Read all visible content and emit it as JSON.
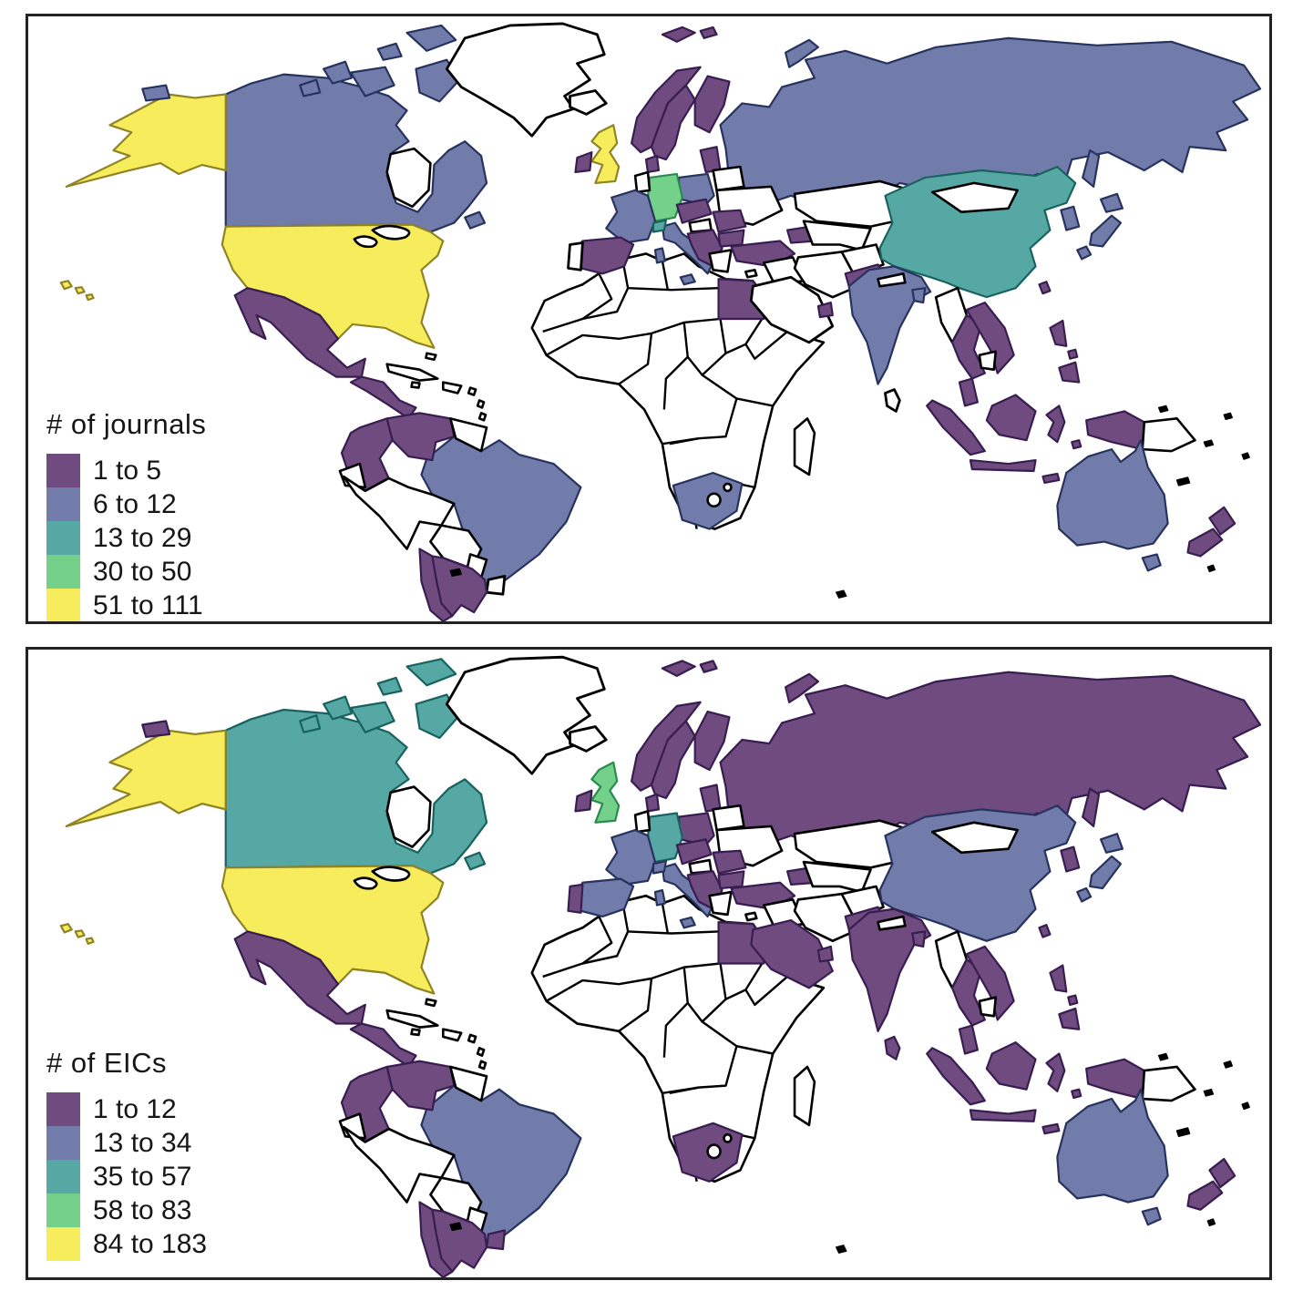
{
  "figure": {
    "description": "Two choropleth world maps",
    "background": "#ffffff"
  },
  "colors": {
    "purple": "#6f4b80",
    "blue": "#717cab",
    "teal": "#55a8a3",
    "green": "#74d189",
    "yellow": "#f7ec5b",
    "none": "#ffffff"
  },
  "stroke_colors": {
    "purple": "#381d50",
    "blue": "#27325e",
    "teal": "#1a625f",
    "green": "#2a8a50",
    "yellow": "#8f8326",
    "none": "#000000"
  },
  "panels": [
    {
      "id": "journals",
      "legend_title": "# of journals",
      "legend": [
        {
          "bin": "purple",
          "label": "1 to 5"
        },
        {
          "bin": "blue",
          "label": "6 to 12"
        },
        {
          "bin": "teal",
          "label": "13 to 29"
        },
        {
          "bin": "green",
          "label": "30 to 50"
        },
        {
          "bin": "yellow",
          "label": "51 to 111"
        }
      ],
      "countries": {
        "russia": "blue",
        "novaya_zemlya": "blue",
        "sakhalin": "blue",
        "svalbard": "purple",
        "canada": "blue",
        "arctic_islands": "blue",
        "newfoundland": "blue",
        "alaska": "yellow",
        "alaska_island": "blue",
        "usa": "yellow",
        "hawaii": "yellow",
        "greenland": "none",
        "iceland": "none",
        "mexico": "purple",
        "centram": "purple",
        "brazil": "blue",
        "colombia": "purple",
        "venezuela": "purple",
        "guyanas": "none",
        "ecuador": "none",
        "peru": "none",
        "bolivia": "none",
        "paraguay": "none",
        "uruguay": "none",
        "argentina": "purple",
        "chile": "purple",
        "africa": "none",
        "egypt": "purple",
        "south_africa": "blue",
        "madagascar": "none",
        "norway": "purple",
        "sweden": "purple",
        "finland": "purple",
        "denmark": "purple",
        "baltics": "purple",
        "belarus": "none",
        "ukraine": "none",
        "poland": "blue",
        "germany": "green",
        "benelux": "none",
        "france": "blue",
        "spain": "purple",
        "portugal": "none",
        "italy": "blue",
        "switzerland": "teal",
        "austria_czech": "purple",
        "hungary": "none",
        "romania": "purple",
        "balkans": "purple",
        "bulgaria": "purple",
        "greece": "none",
        "uk": "yellow",
        "ireland": "purple",
        "turkey": "purple",
        "caucasus": "purple",
        "cyprus": "none",
        "iraq": "none",
        "iran": "none",
        "saudi": "none",
        "uae": "purple",
        "kazakhstan": "none",
        "centralasia": "none",
        "afghanistan": "none",
        "china": "teal",
        "mongolia": "none",
        "taiwan": "purple",
        "korea": "blue",
        "japan": "blue",
        "pakistan": "purple",
        "india": "blue",
        "nepal": "none",
        "bangladesh": "blue",
        "srilanka": "none",
        "myanmar": "none",
        "thailand": "purple",
        "vietnam": "purple",
        "cambodia": "none",
        "malaysia": "purple",
        "sumatra": "purple",
        "java": "purple",
        "borneo": "purple",
        "sulawesi": "purple",
        "lesser_sunda": "purple",
        "moluccas": "purple",
        "philippines": "purple",
        "newguinea_west": "purple",
        "newguinea_east": "none",
        "australia": "blue",
        "tasmania": "blue",
        "nz": "purple"
      }
    },
    {
      "id": "eics",
      "legend_title": "# of EICs",
      "legend": [
        {
          "bin": "purple",
          "label": "1 to 12"
        },
        {
          "bin": "blue",
          "label": "13 to 34"
        },
        {
          "bin": "teal",
          "label": "35 to 57"
        },
        {
          "bin": "green",
          "label": "58 to 83"
        },
        {
          "bin": "yellow",
          "label": "84 to 183"
        }
      ],
      "countries": {
        "russia": "purple",
        "novaya_zemlya": "purple",
        "sakhalin": "purple",
        "svalbard": "purple",
        "canada": "teal",
        "arctic_islands": "teal",
        "newfoundland": "teal",
        "alaska": "yellow",
        "alaska_island": "purple",
        "usa": "yellow",
        "hawaii": "yellow",
        "greenland": "none",
        "iceland": "none",
        "mexico": "purple",
        "centram": "purple",
        "brazil": "blue",
        "colombia": "purple",
        "venezuela": "purple",
        "guyanas": "none",
        "ecuador": "none",
        "peru": "none",
        "bolivia": "none",
        "paraguay": "none",
        "uruguay": "purple",
        "argentina": "purple",
        "chile": "purple",
        "africa": "none",
        "egypt": "purple",
        "south_africa": "purple",
        "madagascar": "none",
        "norway": "purple",
        "sweden": "purple",
        "finland": "purple",
        "denmark": "purple",
        "baltics": "purple",
        "belarus": "none",
        "ukraine": "none",
        "poland": "purple",
        "germany": "teal",
        "benelux": "none",
        "france": "blue",
        "spain": "blue",
        "portugal": "purple",
        "italy": "blue",
        "switzerland": "blue",
        "austria_czech": "purple",
        "hungary": "none",
        "romania": "purple",
        "balkans": "purple",
        "bulgaria": "purple",
        "greece": "none",
        "uk": "green",
        "ireland": "purple",
        "turkey": "purple",
        "caucasus": "purple",
        "cyprus": "none",
        "iraq": "none",
        "iran": "none",
        "saudi": "purple",
        "uae": "purple",
        "kazakhstan": "none",
        "centralasia": "none",
        "afghanistan": "none",
        "china": "blue",
        "mongolia": "none",
        "taiwan": "purple",
        "korea": "purple",
        "japan": "blue",
        "pakistan": "purple",
        "india": "purple",
        "nepal": "none",
        "bangladesh": "purple",
        "srilanka": "purple",
        "myanmar": "none",
        "thailand": "purple",
        "vietnam": "purple",
        "cambodia": "none",
        "malaysia": "purple",
        "sumatra": "purple",
        "java": "purple",
        "borneo": "purple",
        "sulawesi": "purple",
        "lesser_sunda": "purple",
        "moluccas": "purple",
        "philippines": "purple",
        "newguinea_west": "purple",
        "newguinea_east": "none",
        "australia": "blue",
        "tasmania": "blue",
        "nz": "purple"
      }
    }
  ]
}
